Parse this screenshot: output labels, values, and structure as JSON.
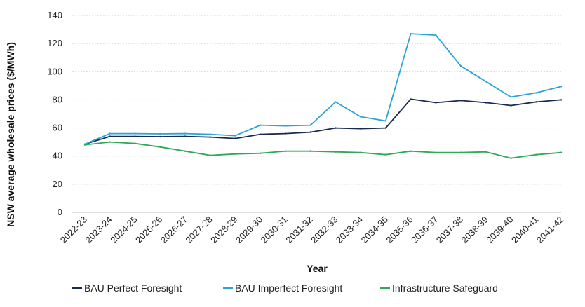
{
  "chart_data": {
    "type": "line",
    "title": "",
    "xlabel": "Year",
    "ylabel": "NSW average wholesale prices ($/MWh)",
    "ylim": [
      0,
      140
    ],
    "yticks": [
      "0",
      "20",
      "40",
      "60",
      "80",
      "100",
      "120",
      "140"
    ],
    "grid": "horizontal dashed",
    "legend_position": "bottom",
    "categories": [
      "2022-23",
      "2023-24",
      "2024-25",
      "2025-26",
      "2026-27",
      "2027-28",
      "2028-29",
      "2029-30",
      "2030-31",
      "2031-32",
      "2032-33",
      "2033-34",
      "2034-35",
      "2035-36",
      "2036-37",
      "2037-38",
      "2038-39",
      "2039-40",
      "2040-41",
      "2041-42"
    ],
    "series": [
      {
        "name": "BAU Perfect Foresight",
        "color": "#1b2a52",
        "values": [
          48.5,
          54,
          54,
          53.8,
          54,
          53.5,
          52.5,
          55.5,
          56,
          57,
          60,
          59.5,
          60,
          80.5,
          78,
          79.5,
          78,
          76,
          78.5,
          80
        ]
      },
      {
        "name": "BAU Imperfect Foresight",
        "color": "#29a3dc",
        "values": [
          48.5,
          56,
          56,
          55.8,
          56,
          55.5,
          54.5,
          62,
          61.5,
          62,
          78.5,
          68,
          65,
          127,
          126,
          104,
          93,
          82,
          85,
          89.5
        ]
      },
      {
        "name": "Infrastructure Safeguard",
        "color": "#2fa85a",
        "values": [
          48,
          50,
          49,
          46.5,
          43.5,
          40.5,
          41.5,
          42,
          43.5,
          43.5,
          43,
          42.5,
          41,
          43.5,
          42.5,
          42.5,
          43,
          38.5,
          41,
          42.5
        ]
      }
    ]
  }
}
